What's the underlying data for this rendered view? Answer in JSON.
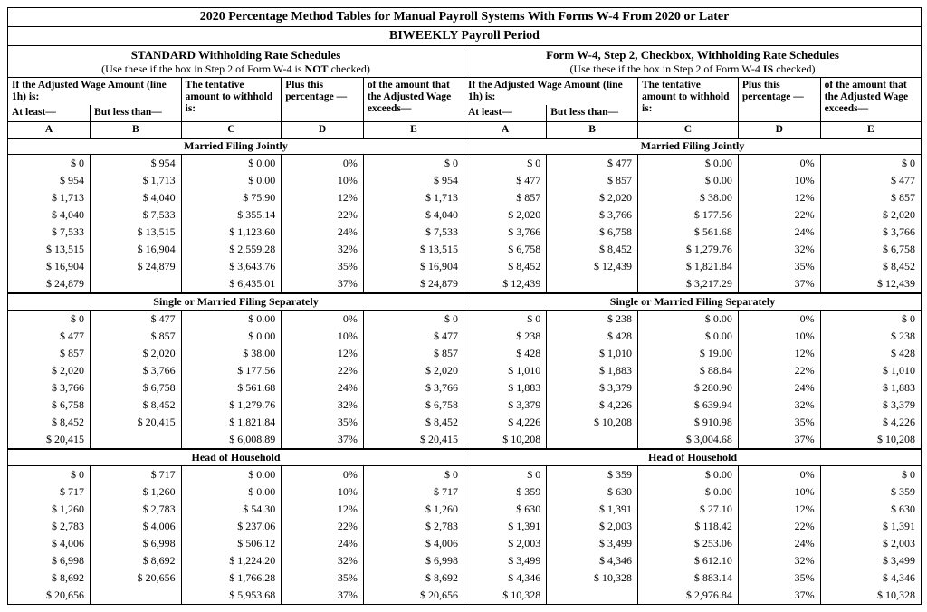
{
  "title_main": "2020 Percentage Method Tables for Manual Payroll Systems With Forms W-4 From 2020 or Later",
  "title_period": "BIWEEKLY Payroll Period",
  "left": {
    "head1": "STANDARD Withholding Rate Schedules",
    "head2_pre": "(Use these if the box in Step 2 of Form W-4 is ",
    "head2_bold": "NOT",
    "head2_post": " checked)"
  },
  "right": {
    "head1": "Form W-4, Step 2, Checkbox, Withholding Rate Schedules",
    "head2_pre": "(Use these if the box in Step 2 of Form W-4 ",
    "head2_bold": "IS",
    "head2_post": " checked)"
  },
  "head_labels": {
    "adj_line": "If the Adjusted Wage Amount (line 1h) is:",
    "tentative": "The tentative amount to withhold is:",
    "plus": "Plus this percentage —",
    "exceeds_left": "of the amount that the Adjusted Wage exceeds—",
    "exceeds_right": "of the amount that the Adjusted Wage exceeds—",
    "atleast": "At least—",
    "butless": "But less than—",
    "A": "A",
    "B": "B",
    "C": "C",
    "D": "D",
    "E": "E"
  },
  "section_names": {
    "mfj": "Married Filing Jointly",
    "smfs": "Single or Married Filing Separately",
    "hoh": "Head of Household"
  },
  "tables": {
    "left": {
      "mfj": [
        [
          "$ 0",
          "$ 954",
          "$ 0.00",
          "0%",
          "$ 0"
        ],
        [
          "$ 954",
          "$ 1,713",
          "$ 0.00",
          "10%",
          "$ 954"
        ],
        [
          "$ 1,713",
          "$ 4,040",
          "$ 75.90",
          "12%",
          "$ 1,713"
        ],
        [
          "$ 4,040",
          "$ 7,533",
          "$ 355.14",
          "22%",
          "$ 4,040"
        ],
        [
          "$ 7,533",
          "$ 13,515",
          "$ 1,123.60",
          "24%",
          "$ 7,533"
        ],
        [
          "$ 13,515",
          "$ 16,904",
          "$ 2,559.28",
          "32%",
          "$ 13,515"
        ],
        [
          "$ 16,904",
          "$ 24,879",
          "$ 3,643.76",
          "35%",
          "$ 16,904"
        ],
        [
          "$ 24,879",
          "",
          "$ 6,435.01",
          "37%",
          "$ 24,879"
        ]
      ],
      "smfs": [
        [
          "$ 0",
          "$ 477",
          "$ 0.00",
          "0%",
          "$ 0"
        ],
        [
          "$ 477",
          "$ 857",
          "$ 0.00",
          "10%",
          "$ 477"
        ],
        [
          "$ 857",
          "$ 2,020",
          "$ 38.00",
          "12%",
          "$ 857"
        ],
        [
          "$ 2,020",
          "$ 3,766",
          "$ 177.56",
          "22%",
          "$ 2,020"
        ],
        [
          "$ 3,766",
          "$ 6,758",
          "$ 561.68",
          "24%",
          "$ 3,766"
        ],
        [
          "$ 6,758",
          "$ 8,452",
          "$ 1,279.76",
          "32%",
          "$ 6,758"
        ],
        [
          "$ 8,452",
          "$ 20,415",
          "$ 1,821.84",
          "35%",
          "$ 8,452"
        ],
        [
          "$ 20,415",
          "",
          "$ 6,008.89",
          "37%",
          "$ 20,415"
        ]
      ],
      "hoh": [
        [
          "$ 0",
          "$ 717",
          "$ 0.00",
          "0%",
          "$ 0"
        ],
        [
          "$ 717",
          "$ 1,260",
          "$ 0.00",
          "10%",
          "$ 717"
        ],
        [
          "$ 1,260",
          "$ 2,783",
          "$ 54.30",
          "12%",
          "$ 1,260"
        ],
        [
          "$ 2,783",
          "$ 4,006",
          "$ 237.06",
          "22%",
          "$ 2,783"
        ],
        [
          "$ 4,006",
          "$ 6,998",
          "$ 506.12",
          "24%",
          "$ 4,006"
        ],
        [
          "$ 6,998",
          "$ 8,692",
          "$ 1,224.20",
          "32%",
          "$ 6,998"
        ],
        [
          "$ 8,692",
          "$ 20,656",
          "$ 1,766.28",
          "35%",
          "$ 8,692"
        ],
        [
          "$ 20,656",
          "",
          "$ 5,953.68",
          "37%",
          "$ 20,656"
        ]
      ]
    },
    "right": {
      "mfj": [
        [
          "$ 0",
          "$ 477",
          "$ 0.00",
          "0%",
          "$ 0"
        ],
        [
          "$ 477",
          "$ 857",
          "$ 0.00",
          "10%",
          "$ 477"
        ],
        [
          "$ 857",
          "$ 2,020",
          "$ 38.00",
          "12%",
          "$ 857"
        ],
        [
          "$ 2,020",
          "$ 3,766",
          "$ 177.56",
          "22%",
          "$ 2,020"
        ],
        [
          "$ 3,766",
          "$ 6,758",
          "$ 561.68",
          "24%",
          "$ 3,766"
        ],
        [
          "$ 6,758",
          "$ 8,452",
          "$ 1,279.76",
          "32%",
          "$ 6,758"
        ],
        [
          "$ 8,452",
          "$ 12,439",
          "$ 1,821.84",
          "35%",
          "$ 8,452"
        ],
        [
          "$ 12,439",
          "",
          "$ 3,217.29",
          "37%",
          "$ 12,439"
        ]
      ],
      "smfs": [
        [
          "$ 0",
          "$ 238",
          "$ 0.00",
          "0%",
          "$ 0"
        ],
        [
          "$ 238",
          "$ 428",
          "$ 0.00",
          "10%",
          "$ 238"
        ],
        [
          "$ 428",
          "$ 1,010",
          "$ 19.00",
          "12%",
          "$ 428"
        ],
        [
          "$ 1,010",
          "$ 1,883",
          "$ 88.84",
          "22%",
          "$ 1,010"
        ],
        [
          "$ 1,883",
          "$ 3,379",
          "$ 280.90",
          "24%",
          "$ 1,883"
        ],
        [
          "$ 3,379",
          "$ 4,226",
          "$ 639.94",
          "32%",
          "$ 3,379"
        ],
        [
          "$ 4,226",
          "$ 10,208",
          "$ 910.98",
          "35%",
          "$ 4,226"
        ],
        [
          "$ 10,208",
          "",
          "$ 3,004.68",
          "37%",
          "$ 10,208"
        ]
      ],
      "hoh": [
        [
          "$ 0",
          "$ 359",
          "$ 0.00",
          "0%",
          "$ 0"
        ],
        [
          "$ 359",
          "$ 630",
          "$ 0.00",
          "10%",
          "$ 359"
        ],
        [
          "$ 630",
          "$ 1,391",
          "$ 27.10",
          "12%",
          "$ 630"
        ],
        [
          "$ 1,391",
          "$ 2,003",
          "$ 118.42",
          "22%",
          "$ 1,391"
        ],
        [
          "$ 2,003",
          "$ 3,499",
          "$ 253.06",
          "24%",
          "$ 2,003"
        ],
        [
          "$ 3,499",
          "$ 4,346",
          "$ 612.10",
          "32%",
          "$ 3,499"
        ],
        [
          "$ 4,346",
          "$ 10,328",
          "$ 883.14",
          "35%",
          "$ 4,346"
        ],
        [
          "$ 10,328",
          "",
          "$ 2,976.84",
          "37%",
          "$ 10,328"
        ]
      ]
    }
  }
}
